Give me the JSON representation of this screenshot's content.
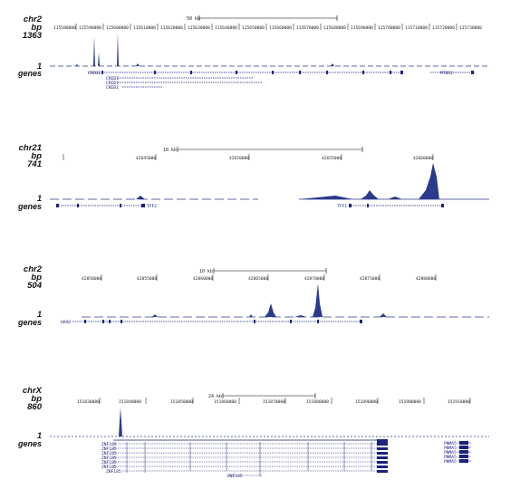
{
  "panels": [
    {
      "chrom": "chr2",
      "bp_label": "bp",
      "count": "1363",
      "one": "1",
      "genes_label": "genes",
      "scale": "50 kb",
      "ticks": [
        "115580000",
        "115590000",
        "115600000",
        "115610000",
        "115620000",
        "115630000",
        "115640000",
        "115650000",
        "115660000",
        "115670000",
        "115680000",
        "115690000",
        "115700000",
        "115710000",
        "115720000",
        "115730000"
      ],
      "gene_labels": [
        "CREB1",
        "CREB1",
        "CREB1",
        "CREB1",
        "MTOR2"
      ]
    },
    {
      "chrom": "chr21",
      "bp_label": "bp",
      "count": "741",
      "one": "1",
      "genes_label": "genes",
      "scale": "10 kb",
      "ticks": [
        "42645000",
        "42650000",
        "42655000",
        "42660000"
      ],
      "gene_labels": [
        "TFF2",
        "TFF1"
      ]
    },
    {
      "chrom": "chr2",
      "bp_label": "bp",
      "count": "504",
      "one": "1",
      "genes_label": "genes",
      "scale": "10 kb",
      "ticks": [
        "42850000",
        "42855000",
        "42860000",
        "42865000",
        "42870000",
        "42875000",
        "42880000"
      ],
      "gene_labels": [
        "HAAO"
      ]
    },
    {
      "chrom": "chrX",
      "bp_label": "bp",
      "count": "860",
      "one": "1",
      "genes_label": "genes",
      "scale": "24 kb",
      "ticks": [
        "151830000",
        "151840000",
        "151850000",
        "151860000",
        "151870000",
        "151880000",
        "151890000",
        "151900000",
        "151910000"
      ],
      "gene_labels": [
        "ZNF185",
        "ZNF185",
        "ZNF185",
        "ZNF185",
        "ZNF185",
        "ZNF185",
        "ZNF185",
        "ZNF185",
        "PNMA5",
        "PNMA5",
        "PNMA5",
        "PNMA5",
        "PNMA5"
      ]
    }
  ],
  "colors": {
    "track": "#2a3a8c",
    "gene": "#1a237e"
  }
}
